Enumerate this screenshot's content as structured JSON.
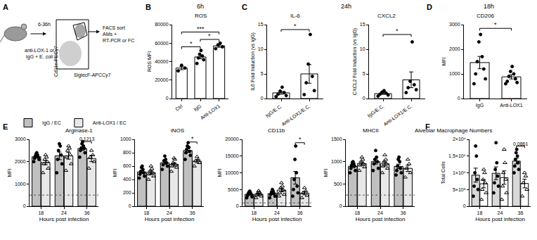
{
  "diagram": {
    "panel": "A",
    "time": "6-36h",
    "treatment": [
      "anti-LOX-1 or",
      "IgG + E. coli"
    ],
    "y_axis": "Cd11c-PECy7",
    "x_axis": "SiglecF-APCCy7",
    "readout": [
      "FACS sort",
      "AMs +",
      "RT-PCR or FC"
    ]
  },
  "chart_data": [
    {
      "panel": "B",
      "header": "6h",
      "type": "bar",
      "color": "#ffffff",
      "marker": "circle",
      "categories": [
        "Ctrl",
        "IgG",
        "Anti-LOX1"
      ],
      "subplots": [
        {
          "title": "ROS",
          "y_label": "ROS MFI",
          "ylim": [
            0,
            80000
          ],
          "yticks": [
            0,
            20000,
            40000,
            60000,
            80000
          ],
          "values": [
            33000,
            45000,
            57000
          ],
          "errors": [
            1800,
            2000,
            1500
          ],
          "points": [
            [
              30000,
              33000,
              36000
            ],
            [
              38000,
              42000,
              44000,
              46000,
              48000,
              52000
            ],
            [
              54000,
              56000,
              58000,
              60000
            ]
          ],
          "significance": [
            {
              "from": 0,
              "to": 1,
              "y": 56000,
              "text": "*"
            },
            {
              "from": 1,
              "to": 2,
              "y": 64000,
              "text": "*"
            },
            {
              "from": 0,
              "to": 2,
              "y": 72000,
              "text": "***"
            }
          ]
        }
      ]
    },
    {
      "panel": "C",
      "header": "24h",
      "type": "bar",
      "color": "#ffffff",
      "marker": "circle",
      "categories": [
        "IgG/E.C.",
        "Anti-LOX1/E.C."
      ],
      "subplots": [
        {
          "title": "IL-6",
          "y_label": "IL6 Fold Induction (vs IgG)",
          "ylim": [
            0,
            15
          ],
          "yticks": [
            0,
            5,
            10,
            15
          ],
          "values": [
            1.15,
            5.0
          ],
          "errors": [
            0.28,
            1.9
          ],
          "points": [
            [
              0.4,
              0.6,
              0.9,
              1.2,
              1.5,
              2.3
            ],
            [
              0.8,
              1.6,
              3.2,
              4.5,
              7,
              13
            ]
          ],
          "significance": [
            {
              "from": 0,
              "to": 1,
              "y": 14,
              "text": "*"
            }
          ]
        },
        {
          "title": "CXCL2",
          "y_label": "CXCL2 Fold Induction (vs IgG)",
          "ylim": [
            0,
            15
          ],
          "yticks": [
            0,
            5,
            10,
            15
          ],
          "values": [
            1.0,
            3.8
          ],
          "errors": [
            0.16,
            1.6
          ],
          "points": [
            [
              0.5,
              0.7,
              0.9,
              1.1,
              1.3,
              1.6
            ],
            [
              1.2,
              1.8,
              2.2,
              2.8,
              3.5,
              11.5
            ]
          ],
          "significance": [
            {
              "from": 0,
              "to": 1,
              "y": 13,
              "text": "*"
            }
          ]
        }
      ]
    },
    {
      "panel": "D",
      "header": "18h",
      "type": "bar",
      "color": "#ffffff",
      "marker": "circle",
      "categories": [
        "IgG",
        "Anti-LOX1"
      ],
      "subplots": [
        {
          "title": "CD206",
          "y_label": "MFI",
          "ylim": [
            0,
            3000
          ],
          "yticks": [
            0,
            1000,
            2000,
            3000
          ],
          "values": [
            1460,
            880
          ],
          "errors": [
            250,
            85
          ],
          "points": [
            [
              600,
              800,
              1000,
              1200,
              1500,
              1700,
              2300,
              2600
            ],
            [
              600,
              650,
              700,
              800,
              900,
              1000,
              1100,
              1300
            ]
          ],
          "significance": [
            {
              "from": 0,
              "to": 1,
              "y": 2850,
              "text": "*"
            }
          ]
        }
      ]
    },
    {
      "panel": "E",
      "type": "bar",
      "x_label": "Hours post infection",
      "legend": "top left",
      "categories": [
        "18",
        "24",
        "36"
      ],
      "series": [
        {
          "name": "IgG / EC",
          "color": "#c0c0c0",
          "marker": "circle"
        },
        {
          "name": "Anti-LOX1 / EC",
          "color": "#e8e8e8",
          "marker": "triangle"
        }
      ],
      "subplots": [
        {
          "title": "Arginase-1",
          "y_label": "MFI",
          "ylim": [
            0,
            3000
          ],
          "yticks": [
            0,
            1000,
            2000,
            3000
          ],
          "isotype": 500,
          "values": [
            [
              2220,
              2260,
              2590
            ],
            [
              1960,
              2260,
              2140
            ]
          ],
          "errors": [
            [
              50,
              170,
              80
            ],
            [
              100,
              150,
              140
            ]
          ],
          "points": [
            [
              [
                2000,
                2100,
                2150,
                2200,
                2250,
                2300,
                2350,
                2400
              ],
              [
                1500,
                1900,
                2100,
                2300,
                2500,
                2700,
                2800
              ],
              [
                2200,
                2400,
                2500,
                2600,
                2600,
                2700,
                2800,
                2900
              ]
            ],
            [
              [
                1500,
                1700,
                1900,
                2000,
                2100,
                2200,
                2300
              ],
              [
                1600,
                1900,
                2200,
                2300,
                2500,
                2600,
                2700
              ],
              [
                1700,
                2000,
                2200,
                2300,
                2500
              ]
            ]
          ],
          "significance": [
            {
              "at": 2,
              "y": 2900,
              "text": "0.1213"
            }
          ]
        },
        {
          "title": "iNOS",
          "y_label": "MFI",
          "ylim": [
            0,
            1000
          ],
          "yticks": [
            0,
            200,
            400,
            600,
            800,
            1000
          ],
          "values": [
            [
              513,
              650,
              833
            ],
            [
              503,
              627,
              674
            ]
          ],
          "errors": [
            [
              22,
              25,
              28
            ],
            [
              25,
              26,
              24
            ]
          ],
          "points": [
            [
              [
                420,
                450,
                480,
                500,
                520,
                550,
                580,
                600
              ],
              [
                550,
                600,
                620,
                650,
                680,
                700,
                750
              ],
              [
                700,
                760,
                800,
                820,
                850,
                880,
                900,
                950
              ]
            ],
            [
              [
                400,
                450,
                480,
                500,
                530,
                560,
                600
              ],
              [
                520,
                580,
                600,
                620,
                650,
                700,
                720
              ],
              [
                600,
                650,
                680,
                700,
                740
              ]
            ]
          ],
          "significance": [
            {
              "at": 2,
              "y": 960,
              "text": "*"
            }
          ]
        },
        {
          "title": "CD11b",
          "y_label": "MFI",
          "ylim": [
            0,
            20000
          ],
          "yticks": [
            0,
            5000,
            10000,
            15000,
            20000
          ],
          "isotype": 1000,
          "values": [
            [
              3563,
              3786,
              8500
            ],
            [
              3600,
              4829,
              3940
            ]
          ],
          "errors": [
            [
              240,
              320,
              1900
            ],
            [
              270,
              520,
              530
            ]
          ],
          "points": [
            [
              [
                2500,
                2800,
                3200,
                3500,
                3800,
                4000,
                4200,
                4500
              ],
              [
                2500,
                3000,
                3500,
                3800,
                4200,
                4500,
                5000
              ],
              [
                3000,
                4000,
                5000,
                6000,
                8000,
                10000,
                14000,
                18000
              ]
            ],
            [
              [
                2500,
                3000,
                3300,
                3600,
                4000,
                4200,
                4600
              ],
              [
                3000,
                3500,
                4000,
                4800,
                5500,
                6000,
                7000
              ],
              [
                2500,
                3200,
                4000,
                4500,
                5500
              ]
            ]
          ],
          "significance": [
            {
              "at": 2,
              "y": 19000,
              "text": "*"
            }
          ]
        },
        {
          "title": "MHCII",
          "y_label": "MFI",
          "ylim": [
            0,
            1500
          ],
          "yticks": [
            0,
            500,
            1000,
            1500
          ],
          "isotype": 250,
          "values": [
            [
              894,
              1000,
              894
            ],
            [
              957,
              950,
              850
            ]
          ],
          "errors": [
            [
              30,
              55,
              50
            ],
            [
              38,
              48,
              70
            ]
          ],
          "points": [
            [
              [
                750,
                800,
                850,
                900,
                920,
                950,
                980,
                1000
              ],
              [
                800,
                850,
                950,
                1000,
                1050,
                1100,
                1250
              ],
              [
                700,
                750,
                800,
                850,
                900,
                1000,
                1050,
                1100
              ]
            ],
            [
              [
                800,
                880,
                920,
                950,
                1000,
                1050,
                1100
              ],
              [
                750,
                850,
                900,
                950,
                1000,
                1050,
                1150
              ],
              [
                650,
                750,
                850,
                950,
                1050
              ]
            ]
          ]
        }
      ]
    },
    {
      "panel": "F",
      "type": "bar",
      "x_label": "Hours post infection",
      "categories": [
        "18",
        "24",
        "36"
      ],
      "series": [
        {
          "color": "#d9d9d9",
          "marker": "circle"
        },
        {
          "color": "#ffffff",
          "marker": "triangle"
        }
      ],
      "subplots": [
        {
          "title": "Alveolar Macrophage Numbers",
          "y_label": "Total Cells",
          "ylim": [
            0,
            2000000
          ],
          "yticks": [
            0,
            {
              "value": 500000,
              "label": "5×10⁵"
            },
            {
              "value": 1000000,
              "label": "1×10⁶"
            },
            {
              "value": 1500000,
              "label": "1.5×10⁶"
            },
            {
              "value": 2000000,
              "label": "2×10⁶"
            }
          ],
          "values": [
            [
              929000,
              986000,
              1350000
            ],
            [
              671000,
              857000,
              680000
            ]
          ],
          "errors": [
            [
              210000,
              190000,
              85000
            ],
            [
              120000,
              200000,
              130000
            ]
          ],
          "points": [
            [
              [
                300000,
                500000,
                600000,
                800000,
                1000000,
                1500000,
                1800000
              ],
              [
                400000,
                600000,
                700000,
                900000,
                1100000,
                1300000,
                1900000
              ],
              [
                1000000,
                1100000,
                1200000,
                1300000,
                1400000,
                1500000,
                1600000,
                1700000
              ]
            ],
            [
              [
                200000,
                400000,
                500000,
                700000,
                800000,
                1000000,
                1100000
              ],
              [
                200000,
                400000,
                600000,
                800000,
                1000000,
                1300000,
                1700000
              ],
              [
                300000,
                500000,
                700000,
                900000,
                1000000
              ]
            ]
          ],
          "significance": [
            {
              "at": 2,
              "y": 1800000,
              "text": "0.0861"
            }
          ]
        }
      ]
    }
  ]
}
